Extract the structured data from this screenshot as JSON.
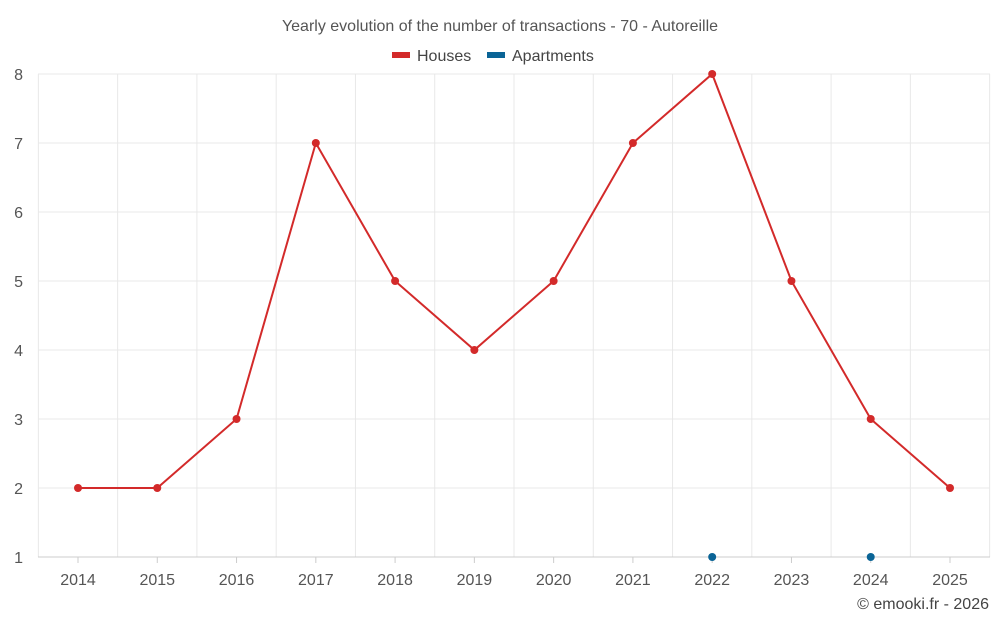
{
  "chart_data": {
    "type": "line",
    "title": "Yearly evolution of the number of transactions - 70 - Autoreille",
    "categories": [
      "2014",
      "2015",
      "2016",
      "2017",
      "2018",
      "2019",
      "2020",
      "2021",
      "2022",
      "2023",
      "2024",
      "2025"
    ],
    "y_ticks": [
      "1",
      "2",
      "3",
      "4",
      "5",
      "6",
      "7",
      "8"
    ],
    "ylim": [
      1,
      8
    ],
    "series": [
      {
        "name": "Houses",
        "color": "#d32a2a",
        "values": [
          2,
          2,
          3,
          7,
          5,
          4,
          5,
          7,
          8,
          5,
          3,
          2
        ]
      },
      {
        "name": "Apartments",
        "color": "#0a6496",
        "values": [
          null,
          null,
          null,
          null,
          null,
          null,
          null,
          null,
          1,
          null,
          1,
          null
        ]
      }
    ],
    "xlabel": "",
    "ylabel": "",
    "grid": true,
    "legend": "top-center"
  },
  "credit": "© emooki.fr - 2026"
}
